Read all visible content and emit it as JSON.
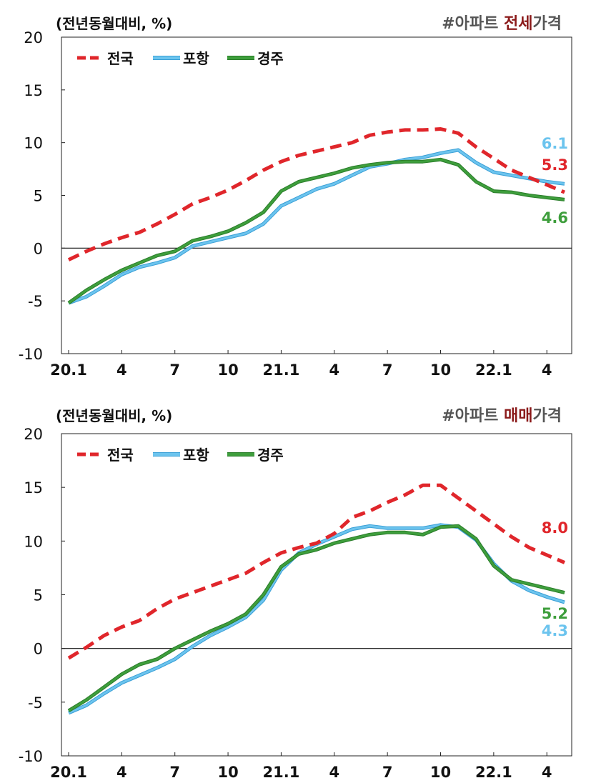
{
  "chart_data": [
    {
      "type": "line",
      "unit_label": "(전년동월대비, %)",
      "title_prefix": "#아파트 ",
      "title_highlight": "전세",
      "title_suffix": "가격",
      "ylim": [
        -10,
        20
      ],
      "yticks": [
        "20",
        "15",
        "10",
        "5",
        "0",
        "-5",
        "-10"
      ],
      "ytick_values": [
        20,
        15,
        10,
        5,
        0,
        -5,
        -10
      ],
      "xtick_labels": [
        "20.1",
        "4",
        "7",
        "10",
        "21.1",
        "4",
        "7",
        "10",
        "22.1",
        "4"
      ],
      "xtick_index": [
        0,
        3,
        6,
        9,
        12,
        15,
        18,
        21,
        24,
        27
      ],
      "n_points": 29,
      "legend": [
        "전국",
        "포항",
        "경주"
      ],
      "legend_placement": "top-left",
      "colors": {
        "national": "#e0262b",
        "pohang": "#6cc4ee",
        "gyeongju": "#3e9e3c"
      },
      "series": [
        {
          "name": "전국",
          "style": "dashed",
          "values": [
            -1.1,
            -0.3,
            0.4,
            1.0,
            1.5,
            2.3,
            3.2,
            4.2,
            4.8,
            5.5,
            6.4,
            7.4,
            8.2,
            8.8,
            9.2,
            9.6,
            10.0,
            10.7,
            11.0,
            11.2,
            11.2,
            11.3,
            10.9,
            9.6,
            8.5,
            7.4,
            6.7,
            6.0,
            5.3
          ]
        },
        {
          "name": "포항",
          "style": "solid",
          "values": [
            -5.2,
            -4.6,
            -3.6,
            -2.5,
            -1.8,
            -1.4,
            -0.9,
            0.2,
            0.6,
            1.0,
            1.4,
            2.3,
            4.0,
            4.8,
            5.6,
            6.1,
            6.9,
            7.7,
            8.0,
            8.4,
            8.6,
            9.0,
            9.3,
            8.1,
            7.2,
            6.9,
            6.6,
            6.3,
            6.1
          ]
        },
        {
          "name": "경주",
          "style": "solid",
          "values": [
            -5.2,
            -4.0,
            -3.0,
            -2.1,
            -1.4,
            -0.7,
            -0.3,
            0.7,
            1.1,
            1.6,
            2.4,
            3.4,
            5.4,
            6.3,
            6.7,
            7.1,
            7.6,
            7.9,
            8.1,
            8.2,
            8.2,
            8.4,
            7.9,
            6.3,
            5.4,
            5.3,
            5.0,
            4.8,
            4.6
          ]
        }
      ],
      "annotations": [
        {
          "text": "6.1",
          "series": "포항"
        },
        {
          "text": "5.3",
          "series": "전국"
        },
        {
          "text": "4.6",
          "series": "경주"
        }
      ]
    },
    {
      "type": "line",
      "unit_label": "(전년동월대비, %)",
      "title_prefix": "#아파트 ",
      "title_highlight": "매매",
      "title_suffix": "가격",
      "ylim": [
        -10,
        20
      ],
      "yticks": [
        "20",
        "15",
        "10",
        "5",
        "0",
        "-5",
        "-10"
      ],
      "ytick_values": [
        20,
        15,
        10,
        5,
        0,
        -5,
        -10
      ],
      "xtick_labels": [
        "20.1",
        "4",
        "7",
        "10",
        "21.1",
        "4",
        "7",
        "10",
        "22.1",
        "4"
      ],
      "xtick_index": [
        0,
        3,
        6,
        9,
        12,
        15,
        18,
        21,
        24,
        27
      ],
      "n_points": 29,
      "legend": [
        "전국",
        "포항",
        "경주"
      ],
      "legend_placement": "top-left",
      "colors": {
        "national": "#e0262b",
        "pohang": "#6cc4ee",
        "gyeongju": "#3e9e3c"
      },
      "series": [
        {
          "name": "전국",
          "style": "dashed",
          "values": [
            -0.9,
            0.1,
            1.2,
            2.0,
            2.6,
            3.7,
            4.6,
            5.2,
            5.8,
            6.4,
            7.0,
            8.0,
            8.9,
            9.4,
            9.8,
            10.7,
            12.2,
            12.8,
            13.6,
            14.3,
            15.2,
            15.2,
            14.0,
            12.8,
            11.6,
            10.4,
            9.4,
            8.7,
            8.0
          ]
        },
        {
          "name": "포항",
          "style": "solid",
          "values": [
            -6.0,
            -5.3,
            -4.2,
            -3.2,
            -2.5,
            -1.8,
            -1.0,
            0.2,
            1.2,
            2.0,
            2.9,
            4.5,
            7.3,
            8.9,
            9.7,
            10.4,
            11.1,
            11.4,
            11.2,
            11.2,
            11.2,
            11.5,
            11.3,
            10.1,
            7.9,
            6.3,
            5.4,
            4.8,
            4.3
          ]
        },
        {
          "name": "경주",
          "style": "solid",
          "values": [
            -5.8,
            -4.8,
            -3.6,
            -2.4,
            -1.5,
            -1.0,
            0.0,
            0.8,
            1.6,
            2.3,
            3.2,
            5.0,
            7.6,
            8.8,
            9.2,
            9.8,
            10.2,
            10.6,
            10.8,
            10.8,
            10.6,
            11.3,
            11.4,
            10.2,
            7.7,
            6.4,
            6.0,
            5.6,
            5.2
          ]
        }
      ],
      "annotations": [
        {
          "text": "8.0",
          "series": "전국"
        },
        {
          "text": "5.2",
          "series": "경주"
        },
        {
          "text": "4.3",
          "series": "포항"
        }
      ]
    }
  ]
}
